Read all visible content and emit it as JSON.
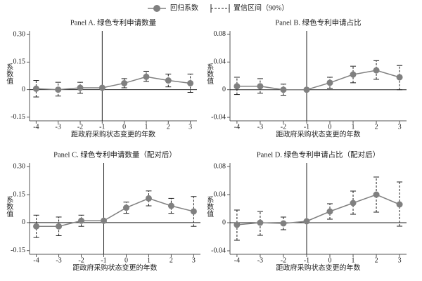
{
  "legend": [
    "回归系数",
    "置信区间（90%）"
  ],
  "chart_data": [
    {
      "type": "errorbar",
      "title": "Panel A. 绿色专利申请数量",
      "ylabel": "系数值",
      "xlabel": "距政府采购状态变更的年数",
      "x": [
        -4,
        -3,
        -2,
        -1,
        0,
        1,
        2,
        3
      ],
      "xlim": [
        -4.3,
        3.3
      ],
      "xticks": [
        -4,
        -3,
        -2,
        -1,
        0,
        1,
        2,
        3
      ],
      "ylim": [
        -0.17,
        0.32
      ],
      "yticks": [
        {
          "value": 0.3,
          "label": "0.30"
        },
        0.15,
        0,
        -0.15
      ],
      "ref_x": -1,
      "ref_y": 0,
      "color": "#808080",
      "ci_color": "#222222",
      "values": [
        0.005,
        0.0,
        0.01,
        0.01,
        0.035,
        0.07,
        0.05,
        0.035
      ],
      "lower": [
        -0.04,
        -0.035,
        -0.02,
        null,
        0.01,
        0.045,
        0.015,
        -0.015
      ],
      "upper": [
        0.05,
        0.04,
        0.04,
        null,
        0.06,
        0.1,
        0.085,
        0.085
      ]
    },
    {
      "type": "errorbar",
      "title": "Panel B. 绿色专利申请占比",
      "ylabel": "系数值",
      "xlabel": "距政府采购状态变更的年数",
      "x": [
        -4,
        -3,
        -2,
        -1,
        0,
        1,
        2,
        3
      ],
      "xlim": [
        -4.3,
        3.3
      ],
      "xticks": [
        -4,
        -3,
        -2,
        -1,
        0,
        1,
        2,
        3
      ],
      "ylim": [
        -0.045,
        0.085
      ],
      "yticks": [
        0.08,
        0.04,
        0,
        -0.04
      ],
      "ref_x": -1,
      "ref_y": 0,
      "color": "#808080",
      "ci_color": "#222222",
      "values": [
        0.005,
        0.005,
        0.0,
        0.0,
        0.01,
        0.022,
        0.028,
        0.018
      ],
      "lower": [
        -0.007,
        -0.005,
        -0.008,
        null,
        0.002,
        0.01,
        0.015,
        0.0
      ],
      "upper": [
        0.018,
        0.016,
        0.008,
        null,
        0.018,
        0.034,
        0.042,
        0.035
      ]
    },
    {
      "type": "errorbar",
      "title": "Panel C. 绿色专利申请数量（配对后）",
      "ylabel": "系数值",
      "xlabel": "距政府采购状态变更的年数",
      "x": [
        -4,
        -3,
        -2,
        -1,
        0,
        1,
        2,
        3
      ],
      "xlim": [
        -4.3,
        3.3
      ],
      "xticks": [
        -4,
        -3,
        -2,
        -1,
        0,
        1,
        2,
        3
      ],
      "ylim": [
        -0.17,
        0.32
      ],
      "yticks": [
        {
          "value": 0.3,
          "label": "0.30"
        },
        0.15,
        0,
        -0.15
      ],
      "ref_x": -1,
      "ref_y": 0,
      "color": "#808080",
      "ci_color": "#222222",
      "values": [
        -0.02,
        -0.02,
        0.01,
        0.01,
        0.08,
        0.13,
        0.09,
        0.06
      ],
      "lower": [
        -0.08,
        -0.07,
        -0.02,
        null,
        0.05,
        0.09,
        0.05,
        -0.02
      ],
      "upper": [
        0.04,
        0.03,
        0.04,
        null,
        0.11,
        0.17,
        0.13,
        0.14
      ]
    },
    {
      "type": "errorbar",
      "title": "Panel D. 绿色专利申请占比（配对后）",
      "ylabel": "系数值",
      "xlabel": "距政府采购状态变更的年数",
      "x": [
        -4,
        -3,
        -2,
        -1,
        0,
        1,
        2,
        3
      ],
      "xlim": [
        -4.3,
        3.3
      ],
      "xticks": [
        -4,
        -3,
        -2,
        -1,
        0,
        1,
        2,
        3
      ],
      "ylim": [
        -0.045,
        0.085
      ],
      "yticks": [
        0.08,
        0.04,
        0,
        -0.04
      ],
      "ref_x": -1,
      "ref_y": 0,
      "color": "#808080",
      "ci_color": "#222222",
      "values": [
        -0.003,
        0.0,
        -0.001,
        0.002,
        0.016,
        0.028,
        0.04,
        0.026
      ],
      "lower": [
        -0.025,
        -0.018,
        -0.01,
        null,
        0.005,
        0.012,
        0.015,
        -0.005
      ],
      "upper": [
        0.018,
        0.016,
        0.008,
        null,
        0.027,
        0.045,
        0.065,
        0.058
      ]
    }
  ]
}
